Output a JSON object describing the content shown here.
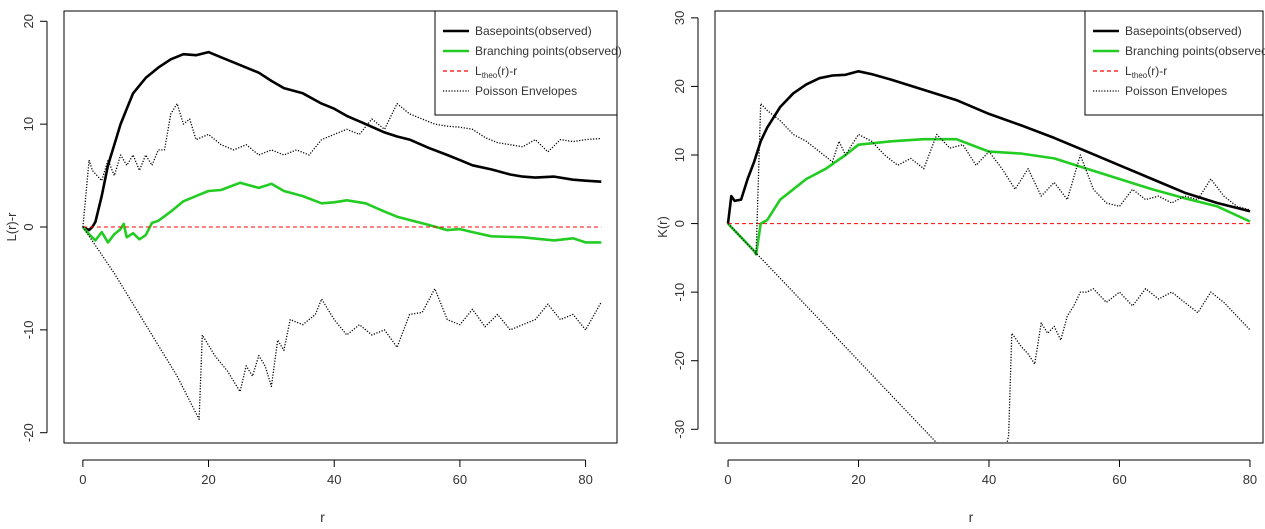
{
  "chart_data": [
    {
      "type": "line",
      "xlabel": "r",
      "ylabel": "L(r)-r",
      "xlim": [
        -3,
        85
      ],
      "ylim": [
        -21,
        21
      ],
      "x_ticks": [
        0,
        20,
        40,
        60,
        80
      ],
      "y_ticks": [
        -20,
        -10,
        0,
        10,
        20
      ],
      "legend_position": "top-right",
      "legend": [
        {
          "label": "Basepoints(observed)",
          "color": "#000000",
          "style": "solid"
        },
        {
          "label": "Branching points(observed)",
          "color": "#22cc22",
          "style": "solid"
        },
        {
          "label_main": "L",
          "label_sub": "theo",
          "label_rest": "(r)-r",
          "color": "#ff0000",
          "style": "dashed"
        },
        {
          "label": "Poisson Envelopes",
          "color": "#000000",
          "style": "dotted"
        }
      ],
      "series": [
        {
          "name": "Basepoints(observed)",
          "color": "#000000",
          "style": "solid",
          "width": 2.6,
          "x": [
            0,
            1,
            1.5,
            2,
            3,
            4,
            5,
            6,
            7,
            8,
            10,
            12,
            14,
            16,
            18,
            20,
            22,
            24,
            26,
            28,
            30,
            32,
            35,
            38,
            40,
            42,
            45,
            48,
            50,
            52,
            55,
            58,
            60,
            62,
            65,
            68,
            70,
            72,
            75,
            78,
            80,
            82.5
          ],
          "y": [
            0,
            -0.3,
            0,
            0.5,
            3,
            6,
            8,
            10,
            11.5,
            13,
            14.5,
            15.5,
            16.3,
            16.8,
            16.7,
            17,
            16.5,
            16,
            15.5,
            15,
            14.2,
            13.5,
            13,
            12,
            11.5,
            10.8,
            10,
            9.2,
            8.8,
            8.5,
            7.7,
            7,
            6.5,
            6,
            5.6,
            5.1,
            4.9,
            4.8,
            4.9,
            4.6,
            4.5,
            4.4
          ]
        },
        {
          "name": "Branching points(observed)",
          "color": "#22cc22",
          "style": "solid",
          "width": 2.6,
          "x": [
            0,
            1,
            2,
            3,
            4,
            5,
            6,
            6.5,
            7,
            8,
            9,
            10,
            11,
            12,
            14,
            16,
            18,
            20,
            22,
            25,
            28,
            30,
            32,
            35,
            38,
            40,
            42,
            45,
            48,
            50,
            55,
            58,
            60,
            62,
            65,
            70,
            75,
            78,
            80,
            82.5
          ],
          "y": [
            0,
            -0.7,
            -1.3,
            -0.5,
            -1.5,
            -0.7,
            -0.2,
            0.3,
            -1,
            -0.6,
            -1.2,
            -0.8,
            0.4,
            0.6,
            1.5,
            2.5,
            3,
            3.5,
            3.6,
            4.3,
            3.8,
            4.2,
            3.5,
            3,
            2.3,
            2.4,
            2.6,
            2.3,
            1.5,
            1,
            0.2,
            -0.3,
            -0.2,
            -0.5,
            -0.9,
            -1,
            -1.3,
            -1.1,
            -1.5,
            -1.5
          ]
        },
        {
          "name": "Ltheo(r)-r",
          "color": "#ff0000",
          "style": "dashed",
          "width": 1,
          "x": [
            0,
            82.5
          ],
          "y": [
            0,
            0
          ]
        },
        {
          "name": "Poisson Envelopes (upper)",
          "color": "#000000",
          "style": "dotted",
          "width": 1.3,
          "x": [
            0,
            1,
            1.5,
            3,
            4,
            5,
            6,
            7,
            8,
            9,
            10,
            11,
            12,
            13,
            14,
            15,
            16,
            17,
            18,
            20,
            22,
            24,
            26,
            28,
            30,
            32,
            34,
            36,
            38,
            40,
            42,
            44,
            46,
            48,
            50,
            52,
            54,
            56,
            58,
            60,
            62,
            64,
            66,
            68,
            70,
            72,
            74,
            76,
            78,
            80,
            82.5
          ],
          "y": [
            0,
            6.5,
            5.5,
            4.5,
            6.5,
            5,
            7,
            6,
            7,
            5.5,
            7,
            6,
            7.5,
            7.5,
            11,
            12,
            10,
            10.5,
            8.5,
            9,
            8,
            7.5,
            8,
            7,
            7.5,
            7,
            7.5,
            7,
            8.5,
            9,
            9.5,
            9,
            10.5,
            9.5,
            12,
            11,
            10.5,
            10,
            9.8,
            9.7,
            9.5,
            8.7,
            8.2,
            8,
            7.8,
            8.5,
            7.3,
            8.5,
            8.3,
            8.5,
            8.6
          ]
        },
        {
          "name": "Poisson Envelopes (lower)",
          "color": "#000000",
          "style": "dotted",
          "width": 1.3,
          "x": [
            0,
            5,
            10,
            15,
            18.5,
            19,
            21,
            23,
            25,
            26,
            27,
            28,
            29,
            30,
            31,
            32,
            33,
            35,
            37,
            38,
            40,
            42,
            44,
            46,
            48,
            50,
            52,
            54,
            56,
            58,
            60,
            62,
            64,
            66,
            68,
            70,
            72,
            74,
            76,
            78,
            80,
            82.5
          ],
          "y": [
            0,
            -4.5,
            -9.5,
            -14.5,
            -18.7,
            -10.5,
            -12.5,
            -14,
            -16,
            -13.5,
            -14.5,
            -12.5,
            -13.5,
            -15.5,
            -11,
            -12,
            -9,
            -9.5,
            -8.5,
            -7,
            -9,
            -10.5,
            -9.5,
            -10.5,
            -10,
            -11.7,
            -8.5,
            -8.3,
            -6,
            -9,
            -9.5,
            -8,
            -9.7,
            -8.5,
            -10,
            -9.5,
            -9,
            -7.5,
            -9,
            -8.5,
            -10,
            -7.3
          ]
        }
      ]
    },
    {
      "type": "line",
      "xlabel": "r",
      "ylabel": "K(r)",
      "xlim": [
        -2,
        82
      ],
      "ylim": [
        -32,
        31
      ],
      "x_ticks": [
        0,
        20,
        40,
        60,
        80
      ],
      "y_ticks": [
        -30,
        -20,
        -10,
        0,
        10,
        20,
        30
      ],
      "legend_position": "top-right",
      "legend": [
        {
          "label": "Basepoints(observed)",
          "color": "#000000",
          "style": "solid"
        },
        {
          "label": "Branching points(observed)",
          "color": "#22cc22",
          "style": "solid"
        },
        {
          "label_main": "L",
          "label_sub": "theo",
          "label_rest": "(r)-r",
          "color": "#ff0000",
          "style": "dashed"
        },
        {
          "label": "Poisson Envelopes",
          "color": "#000000",
          "style": "dotted"
        }
      ],
      "series": [
        {
          "name": "Basepoints(observed)",
          "color": "#000000",
          "style": "solid",
          "width": 2.6,
          "x": [
            0,
            0.5,
            1,
            2,
            3,
            4,
            5,
            6,
            8,
            10,
            12,
            14,
            16,
            18,
            20,
            22,
            25,
            30,
            35,
            40,
            45,
            50,
            55,
            60,
            65,
            70,
            75,
            80
          ],
          "y": [
            0,
            4,
            3.3,
            3.5,
            6.5,
            9,
            12,
            14,
            17,
            19,
            20.3,
            21.2,
            21.6,
            21.7,
            22.2,
            21.8,
            21,
            19.5,
            18,
            16,
            14.3,
            12.5,
            10.5,
            8.5,
            6.5,
            4.5,
            3,
            1.8
          ]
        },
        {
          "name": "Branching points(observed)",
          "color": "#22cc22",
          "style": "solid",
          "width": 2.6,
          "x": [
            0,
            2,
            4,
            4.3,
            5,
            6,
            8,
            10,
            12,
            15,
            18,
            20,
            25,
            30,
            35,
            40,
            45,
            50,
            55,
            60,
            65,
            70,
            75,
            80
          ],
          "y": [
            0,
            -2,
            -4,
            -4.5,
            0,
            0.5,
            3.5,
            5,
            6.5,
            8,
            10,
            11.5,
            12,
            12.3,
            12.3,
            10.5,
            10.2,
            9.5,
            8,
            6.5,
            5,
            3.7,
            2.5,
            0.3
          ]
        },
        {
          "name": "Ltheo(r)-r",
          "color": "#ff0000",
          "style": "dashed",
          "width": 1,
          "x": [
            0,
            80
          ],
          "y": [
            0,
            0
          ]
        },
        {
          "name": "Poisson Envelopes (upper)",
          "color": "#000000",
          "style": "dotted",
          "width": 1.3,
          "x": [
            4.3,
            5,
            6,
            8,
            10,
            12,
            14,
            16,
            17,
            18,
            19,
            20,
            22,
            24,
            26,
            28,
            30,
            32,
            34,
            36,
            38,
            40,
            42,
            44,
            46,
            48,
            50,
            52,
            54,
            56,
            58,
            60,
            62,
            64,
            66,
            68,
            70,
            72,
            74,
            76,
            78,
            80
          ],
          "y": [
            -4.5,
            17.5,
            16.5,
            15,
            13,
            12,
            10.5,
            9,
            12,
            10,
            11.5,
            13,
            12,
            10,
            8.5,
            9.5,
            8,
            13,
            11,
            11.5,
            8.5,
            10.5,
            8,
            5,
            8,
            4,
            6,
            3.5,
            10,
            5,
            3,
            2.5,
            5,
            3.5,
            4,
            3,
            4,
            3.5,
            6.5,
            4,
            2.5,
            2
          ]
        },
        {
          "name": "Poisson Envelopes (lower)",
          "color": "#000000",
          "style": "dotted",
          "width": 1.3,
          "x": [
            0,
            5,
            10,
            15,
            20,
            25,
            28,
            30,
            32,
            34
          ],
          "y": [
            0,
            -5,
            -10,
            -15,
            -20,
            -25,
            -28,
            -30,
            -32,
            -34
          ]
        },
        {
          "name": "Poisson Envelopes (lower, continued)",
          "color": "#000000",
          "style": "dotted",
          "width": 1.3,
          "x": [
            42.5,
            43,
            43.5,
            45,
            46,
            47,
            48,
            49,
            50,
            51,
            52,
            53,
            54,
            55,
            56,
            58,
            60,
            62,
            64,
            66,
            68,
            70,
            72,
            74,
            76,
            78,
            80
          ],
          "y": [
            -33,
            -31,
            -16,
            -18,
            -19,
            -20.5,
            -14.5,
            -16,
            -15,
            -17,
            -13.5,
            -12,
            -10,
            -10,
            -9.5,
            -11.5,
            -10,
            -12,
            -9.5,
            -11,
            -10,
            -11.5,
            -13,
            -10,
            -11.5,
            -13.5,
            -15.5
          ]
        }
      ]
    }
  ]
}
